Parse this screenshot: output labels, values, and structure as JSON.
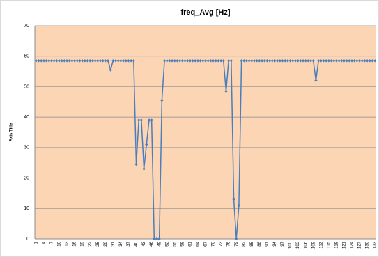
{
  "chart_data": {
    "type": "line",
    "title": "freq_Avg [Hz]",
    "y_label": "Axis Title",
    "categories": [
      1,
      null,
      null,
      4,
      null,
      null,
      7,
      null,
      null,
      10,
      null,
      null,
      13,
      null,
      null,
      16,
      null,
      null,
      19,
      null,
      null,
      22,
      null,
      null,
      25,
      null,
      null,
      28,
      null,
      null,
      31,
      null,
      null,
      34,
      null,
      null,
      37,
      null,
      null,
      40,
      null,
      null,
      43,
      null,
      null,
      46,
      null,
      null,
      49,
      null,
      null,
      52,
      null,
      null,
      55,
      null,
      null,
      58,
      null,
      null,
      61,
      null,
      null,
      64,
      null,
      null,
      67,
      null,
      null,
      70,
      null,
      null,
      73,
      null,
      null,
      76,
      null,
      null,
      79,
      null,
      null,
      82,
      null,
      null,
      85,
      null,
      null,
      88,
      null,
      null,
      91,
      null,
      null,
      94,
      null,
      null,
      97,
      null,
      null,
      100,
      null,
      null,
      103,
      null,
      null,
      106,
      null,
      null,
      109,
      null,
      null,
      112,
      null,
      null,
      115,
      null,
      null,
      118,
      null,
      null,
      121,
      null,
      null,
      124,
      null,
      null,
      127,
      null,
      null,
      130,
      null,
      null,
      133
    ],
    "values": [
      58.5,
      58.5,
      58.5,
      58.5,
      58.5,
      58.5,
      58.5,
      58.5,
      58.5,
      58.5,
      58.5,
      58.5,
      58.5,
      58.5,
      58.5,
      58.5,
      58.5,
      58.5,
      58.5,
      58.5,
      58.5,
      58.5,
      58.5,
      58.5,
      58.5,
      58.5,
      58.5,
      58.5,
      58.5,
      55.5,
      58.5,
      58.5,
      58.5,
      58.5,
      58.5,
      58.5,
      58.5,
      58.5,
      58.5,
      24.5,
      39,
      39,
      23,
      31,
      39,
      39,
      0,
      0,
      0,
      45.5,
      58.5,
      58.5,
      58.5,
      58.5,
      58.5,
      58.5,
      58.5,
      58.5,
      58.5,
      58.5,
      58.5,
      58.5,
      58.5,
      58.5,
      58.5,
      58.5,
      58.5,
      58.5,
      58.5,
      58.5,
      58.5,
      58.5,
      58.5,
      58.5,
      48.5,
      58.5,
      58.5,
      13,
      0,
      11,
      58.5,
      58.5,
      58.5,
      58.5,
      58.5,
      58.5,
      58.5,
      58.5,
      58.5,
      58.5,
      58.5,
      58.5,
      58.5,
      58.5,
      58.5,
      58.5,
      58.5,
      58.5,
      58.5,
      58.5,
      58.5,
      58.5,
      58.5,
      58.5,
      58.5,
      58.5,
      58.5,
      58.5,
      58.5,
      52,
      58.5,
      58.5,
      58.5,
      58.5,
      58.5,
      58.5,
      58.5,
      58.5,
      58.5,
      58.5,
      58.5,
      58.5,
      58.5,
      58.5,
      58.5,
      58.5,
      58.5,
      58.5,
      58.5,
      58.5,
      58.5,
      58.5,
      58.5
    ],
    "color": "#4a7ebb",
    "plot_background": "#fcd5b5",
    "ylim": [
      0,
      70
    ],
    "yticks": [
      0,
      10,
      20,
      30,
      40,
      50,
      60,
      70
    ],
    "grid": true
  }
}
